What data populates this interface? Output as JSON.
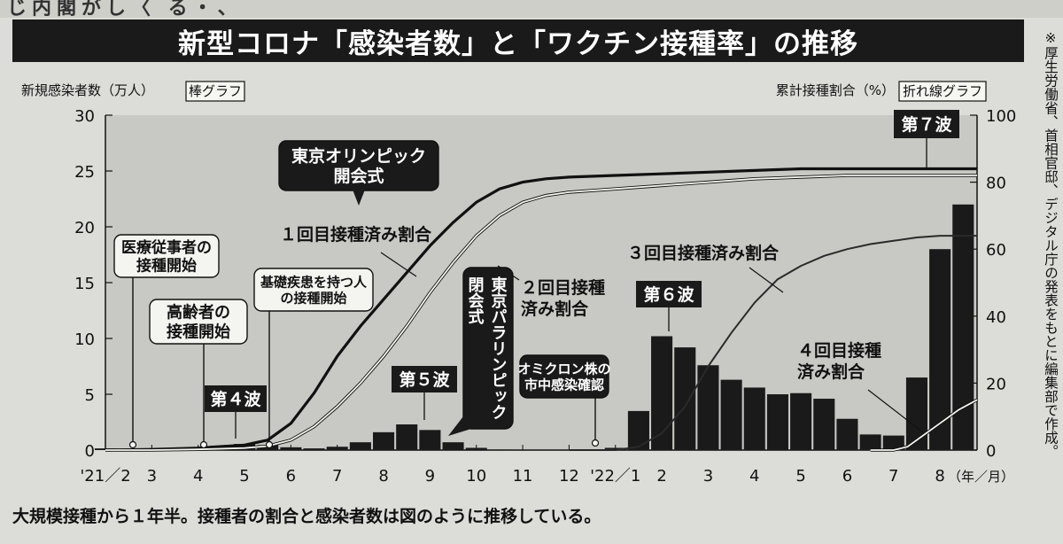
{
  "header": {
    "title": "新型コロナ「感染者数」と「ワクチン接種率」の推移",
    "top_fragment": "じ内閣がし〈 る・、"
  },
  "side_note": "※厚生労働省、首相官邸、デジタル庁の発表をもとに編集部で作成。",
  "caption": "大規模接種から１年半。接種者の割合と感染者数は図のように推移している。",
  "chart_data": {
    "type": "bar",
    "left_axis": {
      "label": "新規感染者数（万人）",
      "legend_box": "棒グラフ",
      "ticks": [
        "30",
        "25",
        "20",
        "15",
        "10",
        "5",
        "0"
      ],
      "ylim": [
        0,
        30
      ]
    },
    "right_axis": {
      "label": "累計接種割合（%）",
      "legend_box": "折れ線グラフ",
      "ticks": [
        "100",
        "80",
        "60",
        "40",
        "20",
        "0"
      ],
      "ylim": [
        0,
        100
      ]
    },
    "x_axis": {
      "ticks": [
        "'21／2",
        "3",
        "4",
        "5",
        "6",
        "7",
        "8",
        "9",
        "10",
        "11",
        "12",
        "'22／1",
        "2",
        "3",
        "4",
        "5",
        "6",
        "7",
        "8"
      ],
      "unit": "（年／月）"
    },
    "bar_series": {
      "x": [
        2.0,
        2.5,
        3.0,
        3.5,
        4.0,
        4.5,
        5.0,
        5.5,
        6.0,
        6.5,
        7.0,
        7.5,
        8.0,
        8.5,
        9.0,
        9.5,
        10.0,
        10.5,
        11.0,
        11.5,
        12.0,
        12.5,
        13.0,
        13.5,
        14.0,
        14.5,
        15.0,
        15.5,
        16.0,
        16.5,
        17.0,
        17.5,
        18.0,
        18.5,
        19.0,
        19.5,
        20.0,
        20.5
      ],
      "values": [
        0.15,
        0.1,
        0.1,
        0.15,
        0.25,
        0.4,
        0.55,
        0.45,
        0.25,
        0.15,
        0.3,
        0.7,
        1.6,
        2.3,
        1.8,
        0.7,
        0.2,
        0.05,
        0.02,
        0.02,
        0.02,
        0.02,
        0.2,
        3.5,
        10.2,
        9.2,
        7.6,
        6.3,
        5.6,
        5.0,
        5.1,
        4.6,
        2.8,
        1.4,
        1.3,
        6.5,
        18.0,
        22.0
      ]
    },
    "line_series": [
      {
        "name": "１回目接種済み割合",
        "x": [
          2.0,
          3.0,
          4.0,
          5.0,
          5.5,
          6.0,
          6.5,
          7.0,
          7.5,
          8.0,
          8.5,
          9.0,
          9.5,
          10.0,
          10.5,
          11.0,
          11.5,
          12.0,
          13.0,
          14.0,
          15.0,
          16.0,
          17.0,
          18.0,
          19.0,
          20.0,
          20.8
        ],
        "values": [
          0,
          0.2,
          0.6,
          1.5,
          3,
          8,
          17,
          28,
          37,
          45,
          53,
          61,
          68,
          74,
          78,
          80,
          81,
          81.5,
          82,
          82.5,
          83,
          83.5,
          84,
          84,
          84,
          84,
          84
        ]
      },
      {
        "name": "２回目接種済み割合",
        "x": [
          2.0,
          3.0,
          4.0,
          5.0,
          5.5,
          6.0,
          6.5,
          7.0,
          7.5,
          8.0,
          8.5,
          9.0,
          9.5,
          10.0,
          10.5,
          11.0,
          11.5,
          12.0,
          13.0,
          14.0,
          15.0,
          16.0,
          17.0,
          18.0,
          19.0,
          20.0,
          20.8
        ],
        "values": [
          0,
          0,
          0.2,
          0.6,
          1.2,
          3,
          7,
          13,
          20,
          28,
          37,
          47,
          56,
          64,
          70,
          74,
          76,
          77,
          78,
          79,
          80,
          81,
          81.5,
          82,
          82,
          82,
          82
        ]
      },
      {
        "name": "３回目接種済み割合",
        "x": [
          12.0,
          13.0,
          13.5,
          14.0,
          14.5,
          15.0,
          15.5,
          16.0,
          16.5,
          17.0,
          17.5,
          18.0,
          18.5,
          19.0,
          19.5,
          20.0,
          20.8
        ],
        "values": [
          0,
          0,
          1,
          5,
          13,
          25,
          35,
          44,
          51,
          55,
          58,
          60,
          61.5,
          62.5,
          63.5,
          64,
          64
        ]
      },
      {
        "name": "４回目接種済み割合",
        "x": [
          18.5,
          19.0,
          19.3,
          19.6,
          20.0,
          20.4,
          20.8
        ],
        "values": [
          0,
          0,
          1,
          4,
          8,
          12,
          15
        ]
      }
    ],
    "callouts": [
      {
        "id": "olympics",
        "text": "東京オリンピック\n開会式"
      },
      {
        "id": "paralympics",
        "text": "東京パラリンピック\n閉会式"
      },
      {
        "id": "medical",
        "text": "医療従事者の\n接種開始"
      },
      {
        "id": "elderly",
        "text": "高齢者の\n接種開始"
      },
      {
        "id": "underlying",
        "text": "基礎疾患を持つ人\nの接種開始"
      },
      {
        "id": "omicron",
        "text": "オミクロン株の\n市中感染確認"
      },
      {
        "id": "wave4",
        "text": "第４波"
      },
      {
        "id": "wave5",
        "text": "第５波"
      },
      {
        "id": "wave6",
        "text": "第６波"
      },
      {
        "id": "wave7",
        "text": "第７波"
      }
    ],
    "line_labels": [
      {
        "id": "dose1",
        "text": "１回目接種済み割合"
      },
      {
        "id": "dose2",
        "text": "２回目接種\n済み割合"
      },
      {
        "id": "dose3",
        "text": "３回目接種済み割合"
      },
      {
        "id": "dose4",
        "text": "４回目接種\n済み割合"
      }
    ],
    "grid": false,
    "legend": "none",
    "colors": {
      "bars": "#1a1a1a",
      "line_dark": "#111111",
      "line_light": "#f4f4f0",
      "panel_gray": "#c8c8c4",
      "callout_dark": "#1a1a1a"
    }
  }
}
